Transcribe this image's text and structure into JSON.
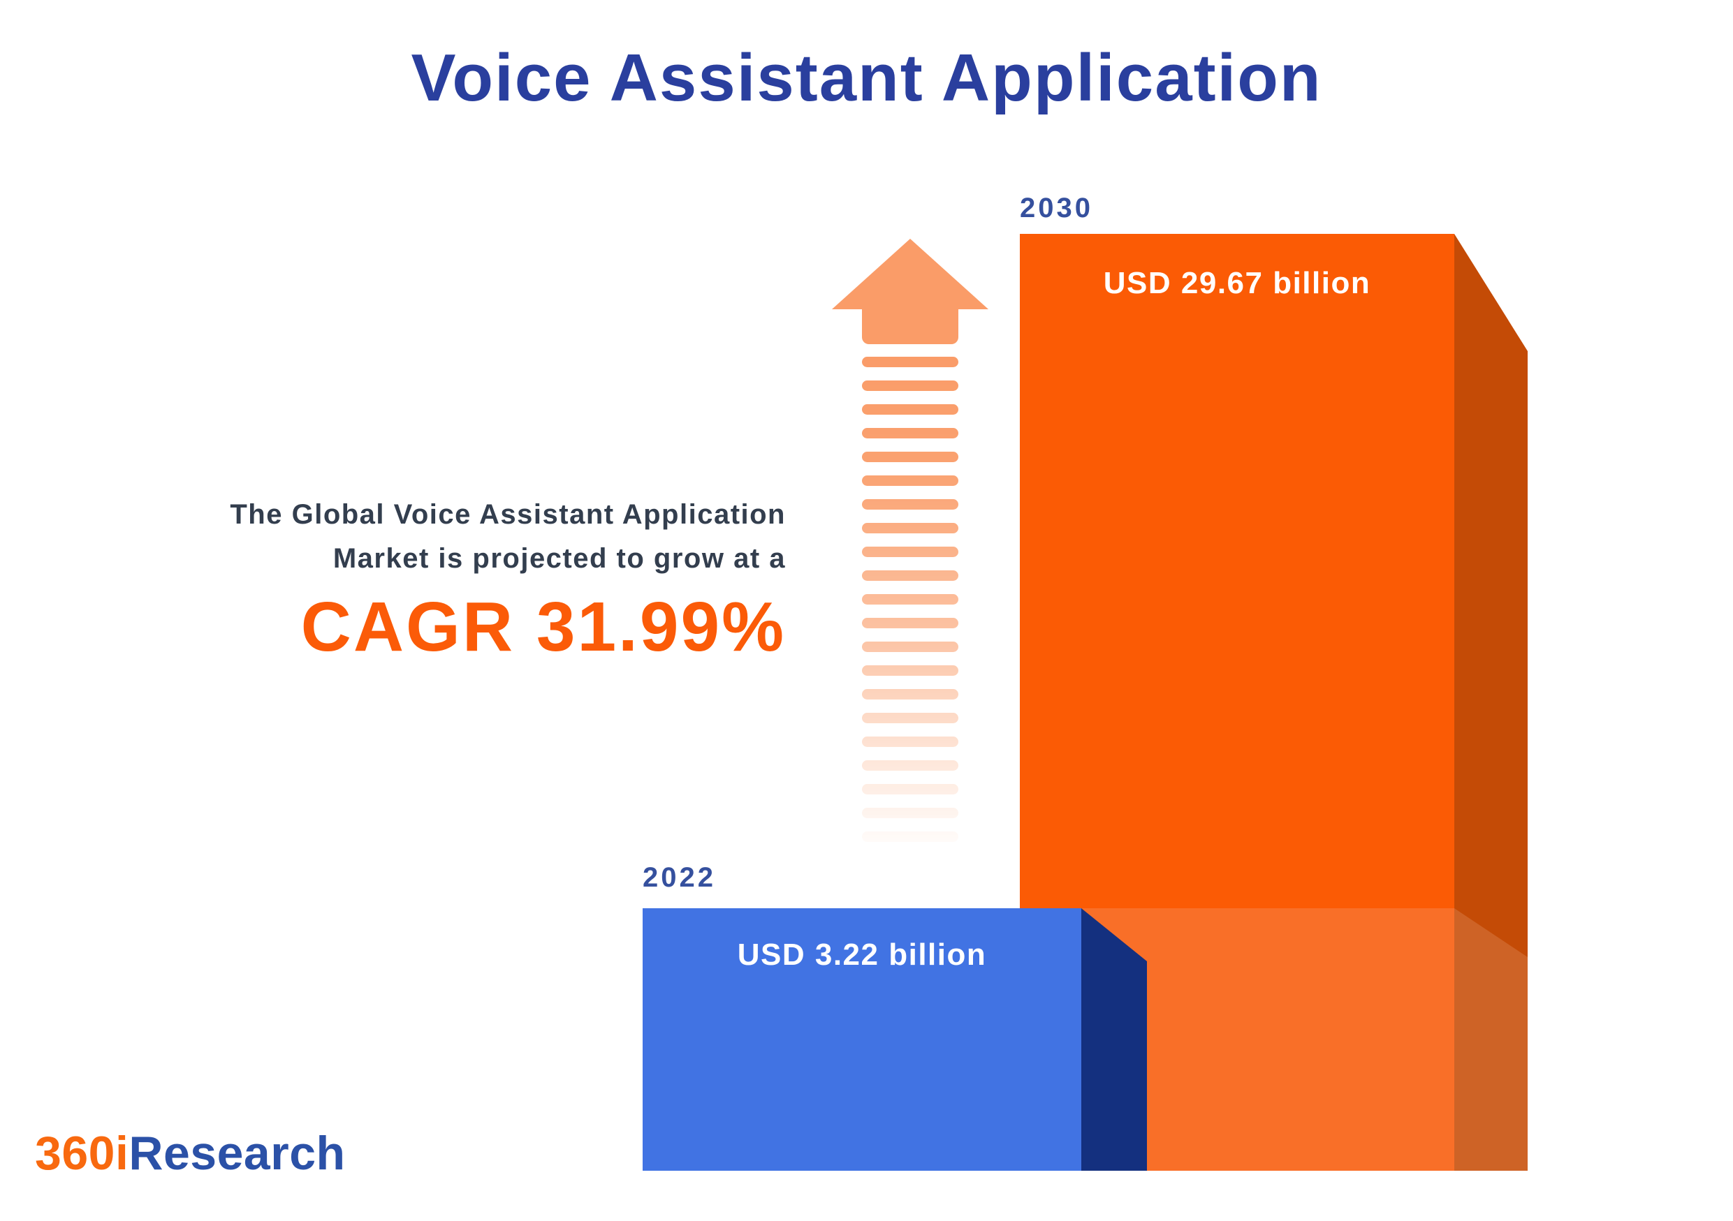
{
  "header": {
    "title": "Voice Assistant Application"
  },
  "annotation": {
    "line1": "The Global Voice Assistant Application",
    "line2": "Market is projected to grow at a",
    "cagr": "CAGR 31.99%"
  },
  "arrow": {
    "dash_count": 21
  },
  "bars": [
    {
      "year": "2022",
      "value_label": "USD 3.22 billion",
      "value_usd_billion": 3.22,
      "front_color": "#4173E3",
      "side_color": "#14307F"
    },
    {
      "year": "2030",
      "value_label": "USD 29.67 billion",
      "value_usd_billion": 29.67,
      "front_color": "#FB5B05",
      "side_color": "#C44B06"
    }
  ],
  "footer": {
    "logo_orange": "360i",
    "logo_blue": "Research"
  },
  "colors": {
    "background": "#FFFFFF",
    "title_blue": "#2A3F9E",
    "year_label_blue": "#35509E",
    "annotation_slate": "#333E4E",
    "cagr_orange": "#FB5B08",
    "bar_2030_front": "#FB5B05",
    "bar_2030_side": "#C44B06",
    "bar_2030_front_lower": "#F96F28",
    "bar_2030_side_lower": "#CE6326",
    "bar_2022_front": "#4173E3",
    "bar_2022_side": "#14307F",
    "value_text_white": "#FFFFFF",
    "arrow_orange": "#FA9C68",
    "logo_orange": "#F8690F",
    "logo_blue": "#2B51A7"
  },
  "chart_data": {
    "type": "bar",
    "title": "Voice Assistant Application",
    "series_label": "Global Voice Assistant Application Market size",
    "categories": [
      "2022",
      "2030"
    ],
    "values": [
      3.22,
      29.67
    ],
    "unit": "USD billion",
    "data_labels": [
      "USD 3.22 billion",
      "USD 29.67 billion"
    ],
    "cagr_percent": 31.99,
    "annotations": [
      "The Global Voice Assistant Application Market is projected to grow at a",
      "CAGR 31.99%"
    ],
    "legend": false,
    "grid": false,
    "axes_visible": false,
    "bar_colors": [
      "#4173E3",
      "#FB5B05"
    ],
    "orientation": "vertical"
  }
}
